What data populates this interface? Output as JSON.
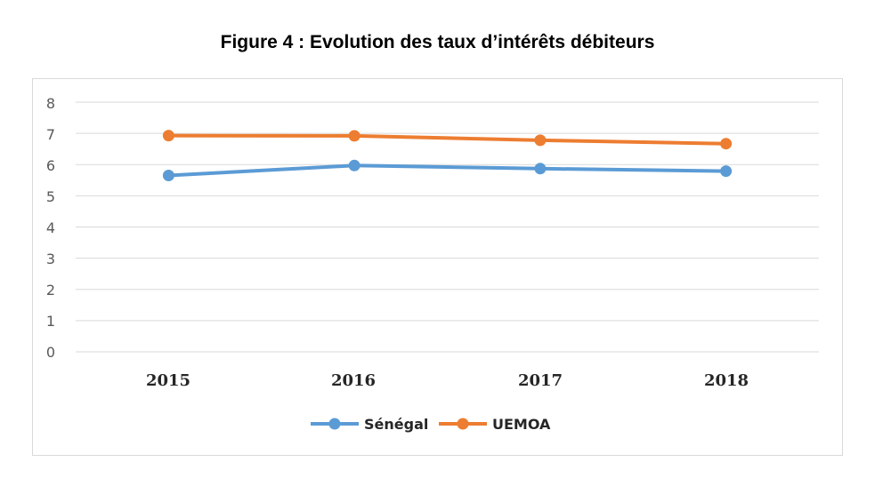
{
  "chart_data": {
    "type": "line",
    "title": "Figure 4 : Evolution des taux d’intérêts débiteurs",
    "xlabel": "",
    "ylabel": "",
    "categories": [
      "2015",
      "2016",
      "2017",
      "2018"
    ],
    "ylim": [
      0,
      8
    ],
    "yticks": [
      "0",
      "1",
      "2",
      "3",
      "4",
      "5",
      "6",
      "7",
      "8"
    ],
    "grid": true,
    "legend_position": "bottom",
    "series": [
      {
        "name": "Sénégal",
        "color": "#5b9bd5",
        "values": [
          5.65,
          5.97,
          5.87,
          5.79
        ]
      },
      {
        "name": "UEMOA",
        "color": "#ed7d31",
        "values": [
          6.93,
          6.92,
          6.78,
          6.67
        ]
      }
    ]
  }
}
